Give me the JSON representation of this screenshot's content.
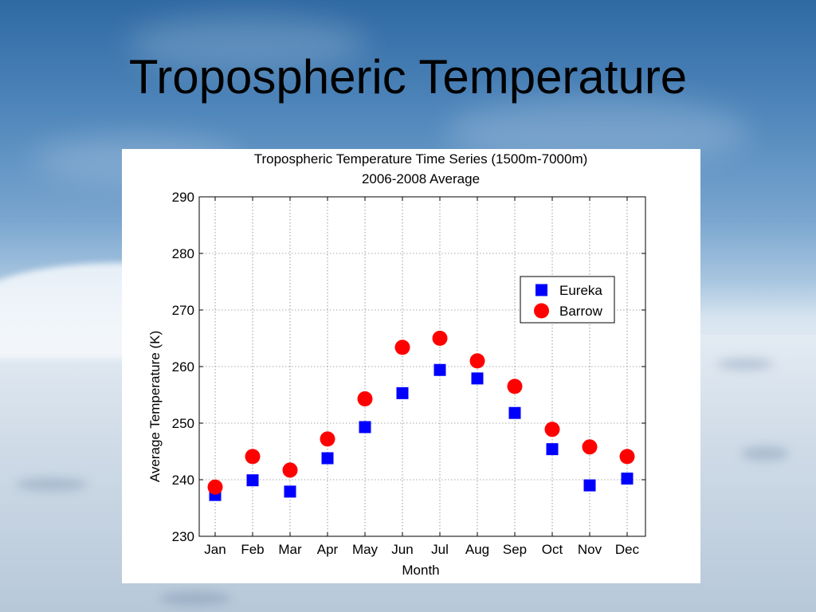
{
  "slide": {
    "title": "Tropospheric Temperature"
  },
  "chart_data": {
    "type": "scatter",
    "title": "Tropospheric Temperature Time Series (1500m-7000m)",
    "subtitle": "2006-2008 Average",
    "xlabel": "Month",
    "ylabel": "Average Temperature (K)",
    "categories": [
      "Jan",
      "Feb",
      "Mar",
      "Apr",
      "May",
      "Jun",
      "Jul",
      "Aug",
      "Sep",
      "Oct",
      "Nov",
      "Dec"
    ],
    "ylim": [
      230,
      290
    ],
    "yticks": [
      230,
      240,
      250,
      260,
      270,
      280,
      290
    ],
    "grid": true,
    "legend_position": "top-right",
    "series": [
      {
        "name": "Eureka",
        "marker": "square",
        "color": "#0000ff",
        "values": [
          237.3,
          239.9,
          237.9,
          243.8,
          249.3,
          255.3,
          259.4,
          257.9,
          251.8,
          245.4,
          239.0,
          240.2
        ]
      },
      {
        "name": "Barrow",
        "marker": "circle",
        "color": "#ff0000",
        "values": [
          238.7,
          244.1,
          241.7,
          247.2,
          254.3,
          263.4,
          265.0,
          261.0,
          256.5,
          248.9,
          245.8,
          244.1
        ]
      }
    ]
  }
}
